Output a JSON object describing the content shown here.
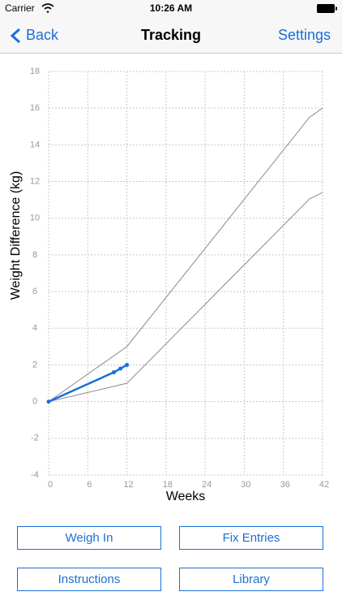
{
  "status_bar": {
    "carrier": "Carrier",
    "time": "10:26 AM"
  },
  "nav": {
    "back": "Back",
    "title": "Tracking",
    "action": "Settings"
  },
  "chart_data": {
    "type": "line",
    "xlabel": "Weeks",
    "ylabel": "Weight Difference (kg)",
    "xlim": [
      0,
      42
    ],
    "xticks": [
      0,
      6,
      12,
      18,
      24,
      30,
      36,
      42
    ],
    "ylim": [
      -4,
      18
    ],
    "yticks": [
      -4,
      -2,
      0,
      2,
      4,
      6,
      8,
      10,
      12,
      14,
      16,
      18
    ],
    "grid": true,
    "series": [
      {
        "color": "#8a8a8a",
        "x": [
          0,
          12,
          40,
          42
        ],
        "values": [
          0,
          3,
          15.5,
          16
        ],
        "markers": false
      },
      {
        "color": "#8a8a8a",
        "x": [
          0,
          12,
          40,
          42
        ],
        "values": [
          0,
          1,
          11.05,
          11.4
        ],
        "markers": false
      },
      {
        "color": "#1b6fd6",
        "x": [
          0,
          10,
          11,
          12
        ],
        "values": [
          0,
          1.6,
          1.8,
          2.0
        ],
        "markers": true
      }
    ]
  },
  "buttons": [
    "Weigh In",
    "Fix Entries",
    "Instructions",
    "Library"
  ]
}
